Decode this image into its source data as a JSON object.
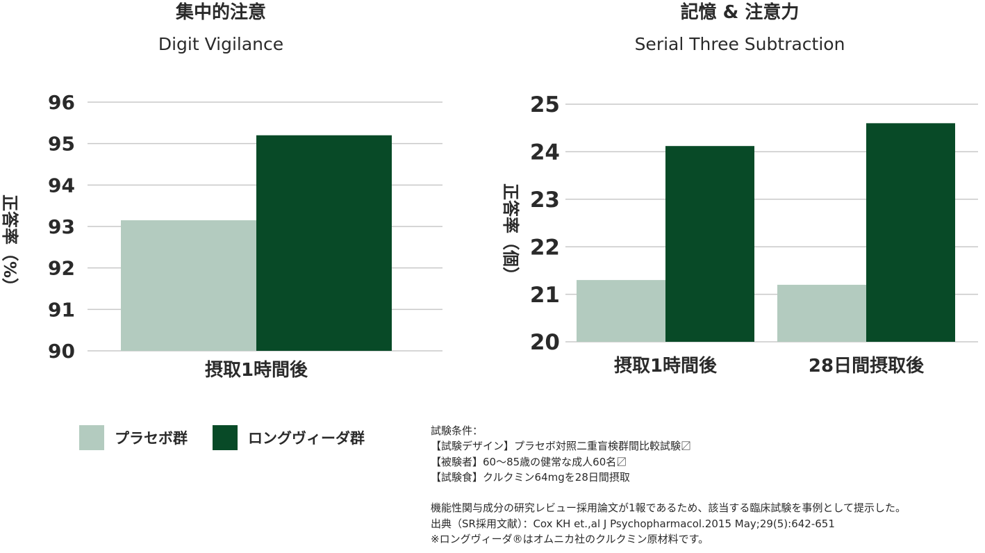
{
  "colors": {
    "placebo": "#b3cbbf",
    "longvida": "#084a27",
    "grid": "#c8c8c8",
    "text": "#2a2a2a"
  },
  "legend": {
    "placebo_label": "プラセボ群",
    "longvida_label": "ロングヴィーダ群"
  },
  "chart_data": [
    {
      "type": "bar",
      "title": "集中的注意",
      "subtitle": "Digit Vigilance",
      "ylabel": "正答率（%）",
      "ylim": [
        90,
        96
      ],
      "yticks": [
        90,
        91,
        92,
        93,
        94,
        95,
        96
      ],
      "categories": [
        "摂取1時間後"
      ],
      "series": [
        {
          "name": "プラセボ群",
          "values": [
            93.15
          ]
        },
        {
          "name": "ロングヴィーダ群",
          "values": [
            95.2
          ]
        }
      ],
      "grid": true
    },
    {
      "type": "bar",
      "title": "記憶 & 注意力",
      "subtitle": "Serial Three Subtraction",
      "ylabel": "正答率（個）",
      "ylim": [
        20,
        25
      ],
      "yticks": [
        20,
        21,
        22,
        23,
        24,
        25
      ],
      "categories": [
        "摂取1時間後",
        "28日間摂取後"
      ],
      "series": [
        {
          "name": "プラセボ群",
          "values": [
            21.3,
            21.2
          ]
        },
        {
          "name": "ロングヴィーダ群",
          "values": [
            24.12,
            24.6
          ]
        }
      ],
      "grid": true
    }
  ],
  "notes": {
    "lines": [
      "試験条件：",
      "【試験デザイン】プラセボ対照二重盲検群間比較試験〼",
      "【被験者】60～85歳の健常な成人60名〼",
      "【試験食】クルクミン64mgを28日間摂取",
      "",
      "機能性関与成分の研究レビュー採用論文が1報であるため、該当する臨床試験を事例として提示した。",
      "出典（SR採用文献）：Cox KH et.,al J Psychopharmacol.2015 May;29(5):642-651",
      "※ロングヴィーダ®はオムニカ社のクルクミン原材料です。"
    ]
  }
}
